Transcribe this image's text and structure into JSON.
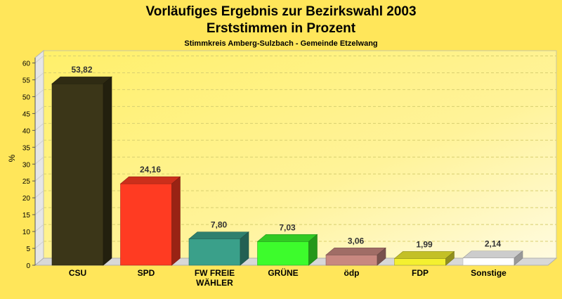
{
  "chart_data": {
    "type": "bar",
    "title": "Vorläufiges Ergebnis zur Bezirkswahl 2003",
    "subtitle_line": "Erststimmen in Prozent",
    "subtitle": "Stimmkreis Amberg-Sulzbach - Gemeinde Etzelwang",
    "ylabel": "%",
    "xlabel": "",
    "ylim": [
      0,
      60
    ],
    "yticks": [
      "0",
      "5",
      "10",
      "15",
      "20",
      "25",
      "30",
      "35",
      "40",
      "45",
      "50",
      "55",
      "60"
    ],
    "categories": [
      "CSU",
      "SPD",
      "FW FREIE\nWÄHLER",
      "GRÜNE",
      "ödp",
      "FDP",
      "Sonstige"
    ],
    "values": [
      53.82,
      24.16,
      7.8,
      7.03,
      3.06,
      1.99,
      2.14
    ],
    "value_labels": [
      "53,82",
      "24,16",
      "7,80",
      "7,03",
      "3,06",
      "1,99",
      "2,14"
    ],
    "colors": [
      "#3b3618",
      "#ff3b22",
      "#3aa08a",
      "#3dfc2c",
      "#c88880",
      "#f4f030",
      "#ffffff"
    ],
    "grid": true,
    "legend": "none"
  }
}
